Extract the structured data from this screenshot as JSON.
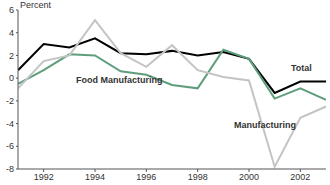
{
  "chart_data": {
    "type": "line",
    "y_label": "Percent",
    "x": [
      1991,
      1992,
      1993,
      1994,
      1995,
      1996,
      1997,
      1998,
      1999,
      2000,
      2001,
      2002,
      2003
    ],
    "series": [
      {
        "name": "Total",
        "color": "#000000",
        "values": [
          0.7,
          3.0,
          2.7,
          3.5,
          2.2,
          2.1,
          2.4,
          2.0,
          2.3,
          1.7,
          -1.3,
          -0.3,
          -0.3
        ]
      },
      {
        "name": "Food Manufacturing",
        "color": "#5f9e7c",
        "values": [
          -0.5,
          0.7,
          2.1,
          2.0,
          0.6,
          0.3,
          -0.6,
          -0.9,
          2.5,
          1.7,
          -1.8,
          -0.9,
          -1.9
        ]
      },
      {
        "name": "Manufacturing",
        "color": "#c4c4c4",
        "values": [
          -0.9,
          1.5,
          2.0,
          5.1,
          2.2,
          1.0,
          2.9,
          0.7,
          0.1,
          -0.2,
          -7.8,
          -3.5,
          -2.5
        ]
      }
    ],
    "xlim": [
      1991,
      2003
    ],
    "xticks": [
      1992,
      1994,
      1996,
      1998,
      2000,
      2002
    ],
    "ylim": [
      -8,
      6
    ],
    "yticks": [
      -8,
      -6,
      -4,
      -2,
      0,
      2,
      4,
      6
    ],
    "grid": false
  }
}
